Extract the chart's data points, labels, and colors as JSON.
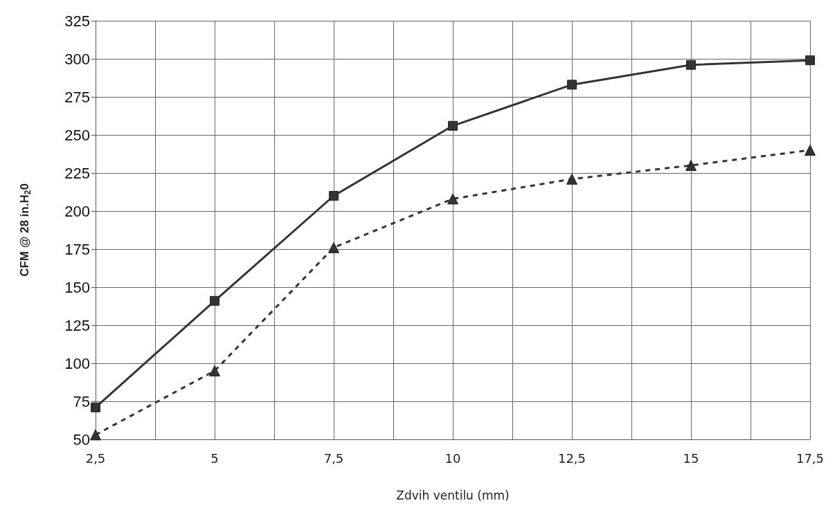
{
  "chart_data": {
    "type": "line",
    "xlabel": "Zdvih ventilu (mm)",
    "ylabel": "CFM @ 28 in.H$_{2}$0",
    "x": [
      2.5,
      5,
      7.5,
      10,
      12.5,
      15,
      17.5
    ],
    "series": [
      {
        "color": "#333333",
        "marker": "square",
        "line_style": "solid",
        "values": [
          71,
          141,
          210,
          256,
          283,
          296,
          299
        ]
      },
      {
        "color": "#333333",
        "marker": "triangle",
        "line_style": "dashed",
        "values": [
          53,
          95,
          176,
          208,
          221,
          230,
          240
        ]
      }
    ],
    "xlim": [
      2.5,
      17.5
    ],
    "xticks": [
      {
        "value": 2.5,
        "label": "2,5"
      },
      {
        "value": 3.75,
        "label": null
      },
      {
        "value": 5,
        "label": "5"
      },
      {
        "value": 6.25,
        "label": null
      },
      {
        "value": 7.5,
        "label": "7,5"
      },
      {
        "value": 8.75,
        "label": null
      },
      {
        "value": 10,
        "label": "10"
      },
      {
        "value": 11.25,
        "label": null
      },
      {
        "value": 12.5,
        "label": "12,5"
      },
      {
        "value": 13.75,
        "label": null
      },
      {
        "value": 15,
        "label": "15"
      },
      {
        "value": 16.25,
        "label": null
      },
      {
        "value": 17.5,
        "label": "17,5"
      }
    ],
    "ylim": [
      50,
      325
    ],
    "yticks": [
      50,
      75,
      100,
      125,
      150,
      175,
      200,
      225,
      250,
      275,
      300,
      325
    ],
    "grid": true
  }
}
